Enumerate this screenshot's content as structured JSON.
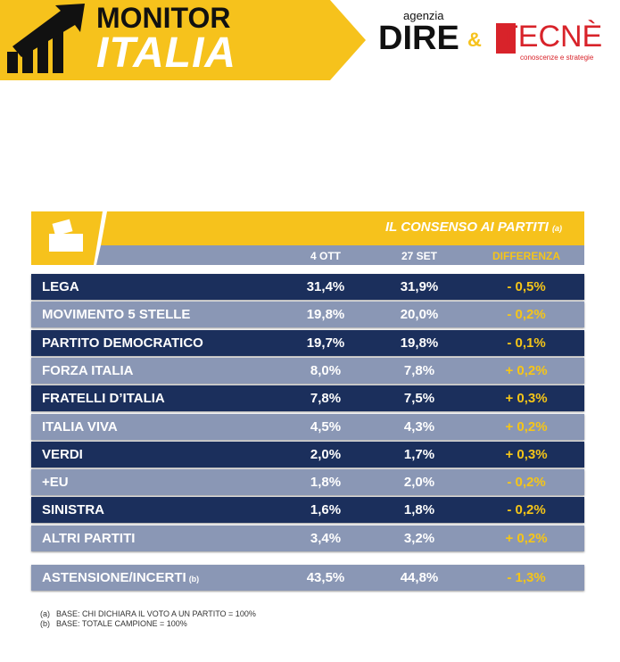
{
  "header": {
    "brand_top": "MONITOR",
    "brand_bottom": "ITALIA",
    "partner1_small": "agenzia",
    "partner1": "DIRE",
    "amp": "&",
    "partner2": "TECNÈ",
    "partner2_tagline": "conoscenze e strategie"
  },
  "table": {
    "title": "IL CONSENSO AI PARTITI",
    "title_note": "(a)",
    "columns": [
      "4 OTT",
      "27 SET",
      "DIFFERENZA"
    ],
    "rows": [
      [
        "LEGA",
        "31,4%",
        "31,9%",
        "- 0,5%"
      ],
      [
        "MOVIMENTO 5 STELLE",
        "19,8%",
        "20,0%",
        "- 0,2%"
      ],
      [
        "PARTITO DEMOCRATICO",
        "19,7%",
        "19,8%",
        "- 0,1%"
      ],
      [
        "FORZA ITALIA",
        "8,0%",
        "7,8%",
        "+ 0,2%"
      ],
      [
        "FRATELLI D’ITALIA",
        "7,8%",
        "7,5%",
        "+ 0,3%"
      ],
      [
        "ITALIA VIVA",
        "4,5%",
        "4,3%",
        "+ 0,2%"
      ],
      [
        "VERDI",
        "2,0%",
        "1,7%",
        "+ 0,3%"
      ],
      [
        "+EU",
        "1,8%",
        "2,0%",
        "- 0,2%"
      ],
      [
        "SINISTRA",
        "1,6%",
        "1,8%",
        "- 0,2%"
      ],
      [
        "ALTRI PARTITI",
        "3,4%",
        "3,2%",
        "+ 0,2%"
      ]
    ],
    "total_row": {
      "label": "ASTENSIONE/INCERTI",
      "note": "(b)",
      "cells": [
        "43,5%",
        "44,8%",
        "- 1,3%"
      ]
    }
  },
  "footnotes": [
    {
      "mark": "(a)",
      "text": "BASE: CHI DICHIARA IL VOTO A UN PARTITO = 100%"
    },
    {
      "mark": "(b)",
      "text": "BASE: TOTALE CAMPIONE = 100%"
    }
  ]
}
